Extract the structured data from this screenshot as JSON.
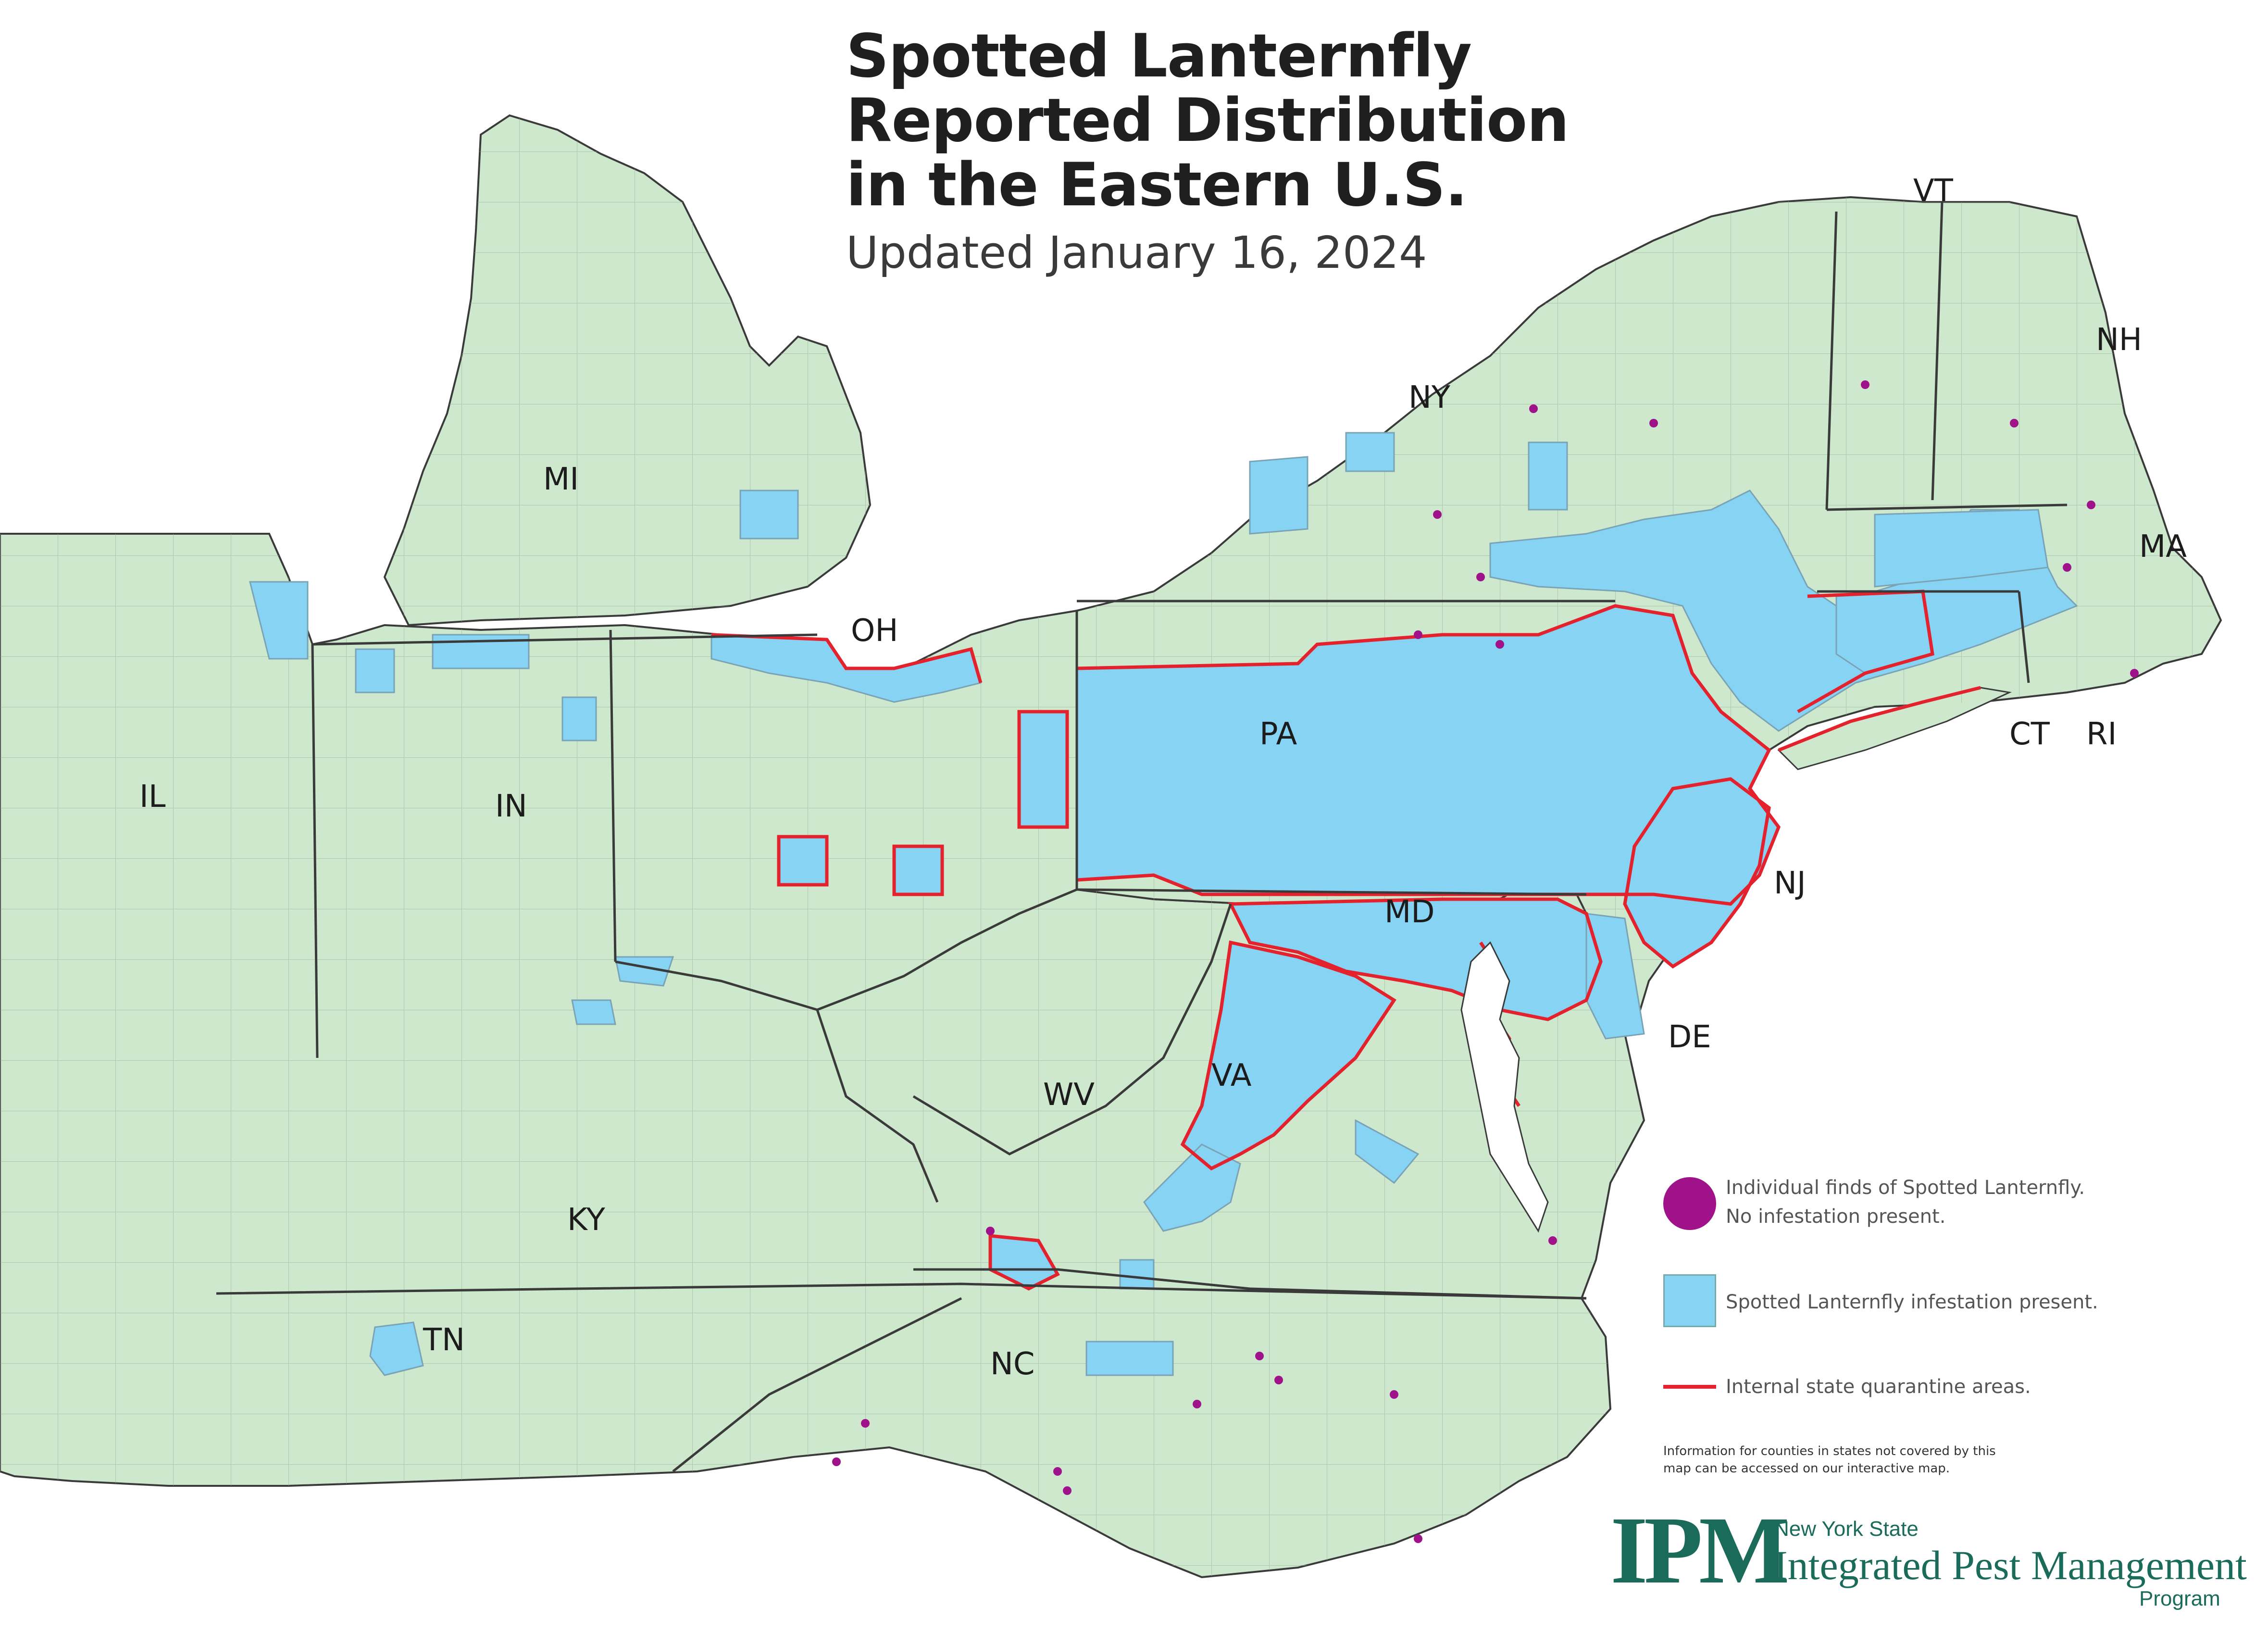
{
  "title": {
    "line1": "Spotted Lanternfly",
    "line2": "Reported Distribution",
    "line3": "in the Eastern U.S.",
    "subtitle": "Updated January 16, 2024"
  },
  "colors": {
    "land": "#cde8cd",
    "infested": "#86d3f4",
    "quarantine_border": "#e3222d",
    "individual_find": "#a0128a",
    "county_border": "#9aa79a",
    "state_border": "#3a3a3a"
  },
  "states": [
    {
      "key": "MI",
      "label": "MI"
    },
    {
      "key": "OH",
      "label": "OH"
    },
    {
      "key": "IN",
      "label": "IN"
    },
    {
      "key": "IL",
      "label": "IL"
    },
    {
      "key": "KY",
      "label": "KY"
    },
    {
      "key": "TN",
      "label": "TN"
    },
    {
      "key": "WV",
      "label": "WV"
    },
    {
      "key": "VA",
      "label": "VA"
    },
    {
      "key": "NC",
      "label": "NC"
    },
    {
      "key": "PA",
      "label": "PA"
    },
    {
      "key": "NY",
      "label": "NY"
    },
    {
      "key": "VT",
      "label": "VT"
    },
    {
      "key": "NH",
      "label": "NH"
    },
    {
      "key": "MA",
      "label": "MA"
    },
    {
      "key": "CT",
      "label": "CT"
    },
    {
      "key": "RI",
      "label": "RI"
    },
    {
      "key": "NJ",
      "label": "NJ"
    },
    {
      "key": "MD",
      "label": "MD"
    },
    {
      "key": "DE",
      "label": "DE"
    }
  ],
  "legend": {
    "individual_finds": {
      "line1": "Individual finds of Spotted Lanternfly.",
      "line2": "No infestation present."
    },
    "infestation": "Spotted Lanternfly infestation present.",
    "quarantine": "Internal state quarantine areas.",
    "note_line1": "Information for counties in states not covered by this",
    "note_line2": "map can be accessed on our interactive map."
  },
  "logo": {
    "mark": "IPM",
    "line1": "New York State",
    "line2": "Integrated Pest Management",
    "line3": "Program"
  }
}
